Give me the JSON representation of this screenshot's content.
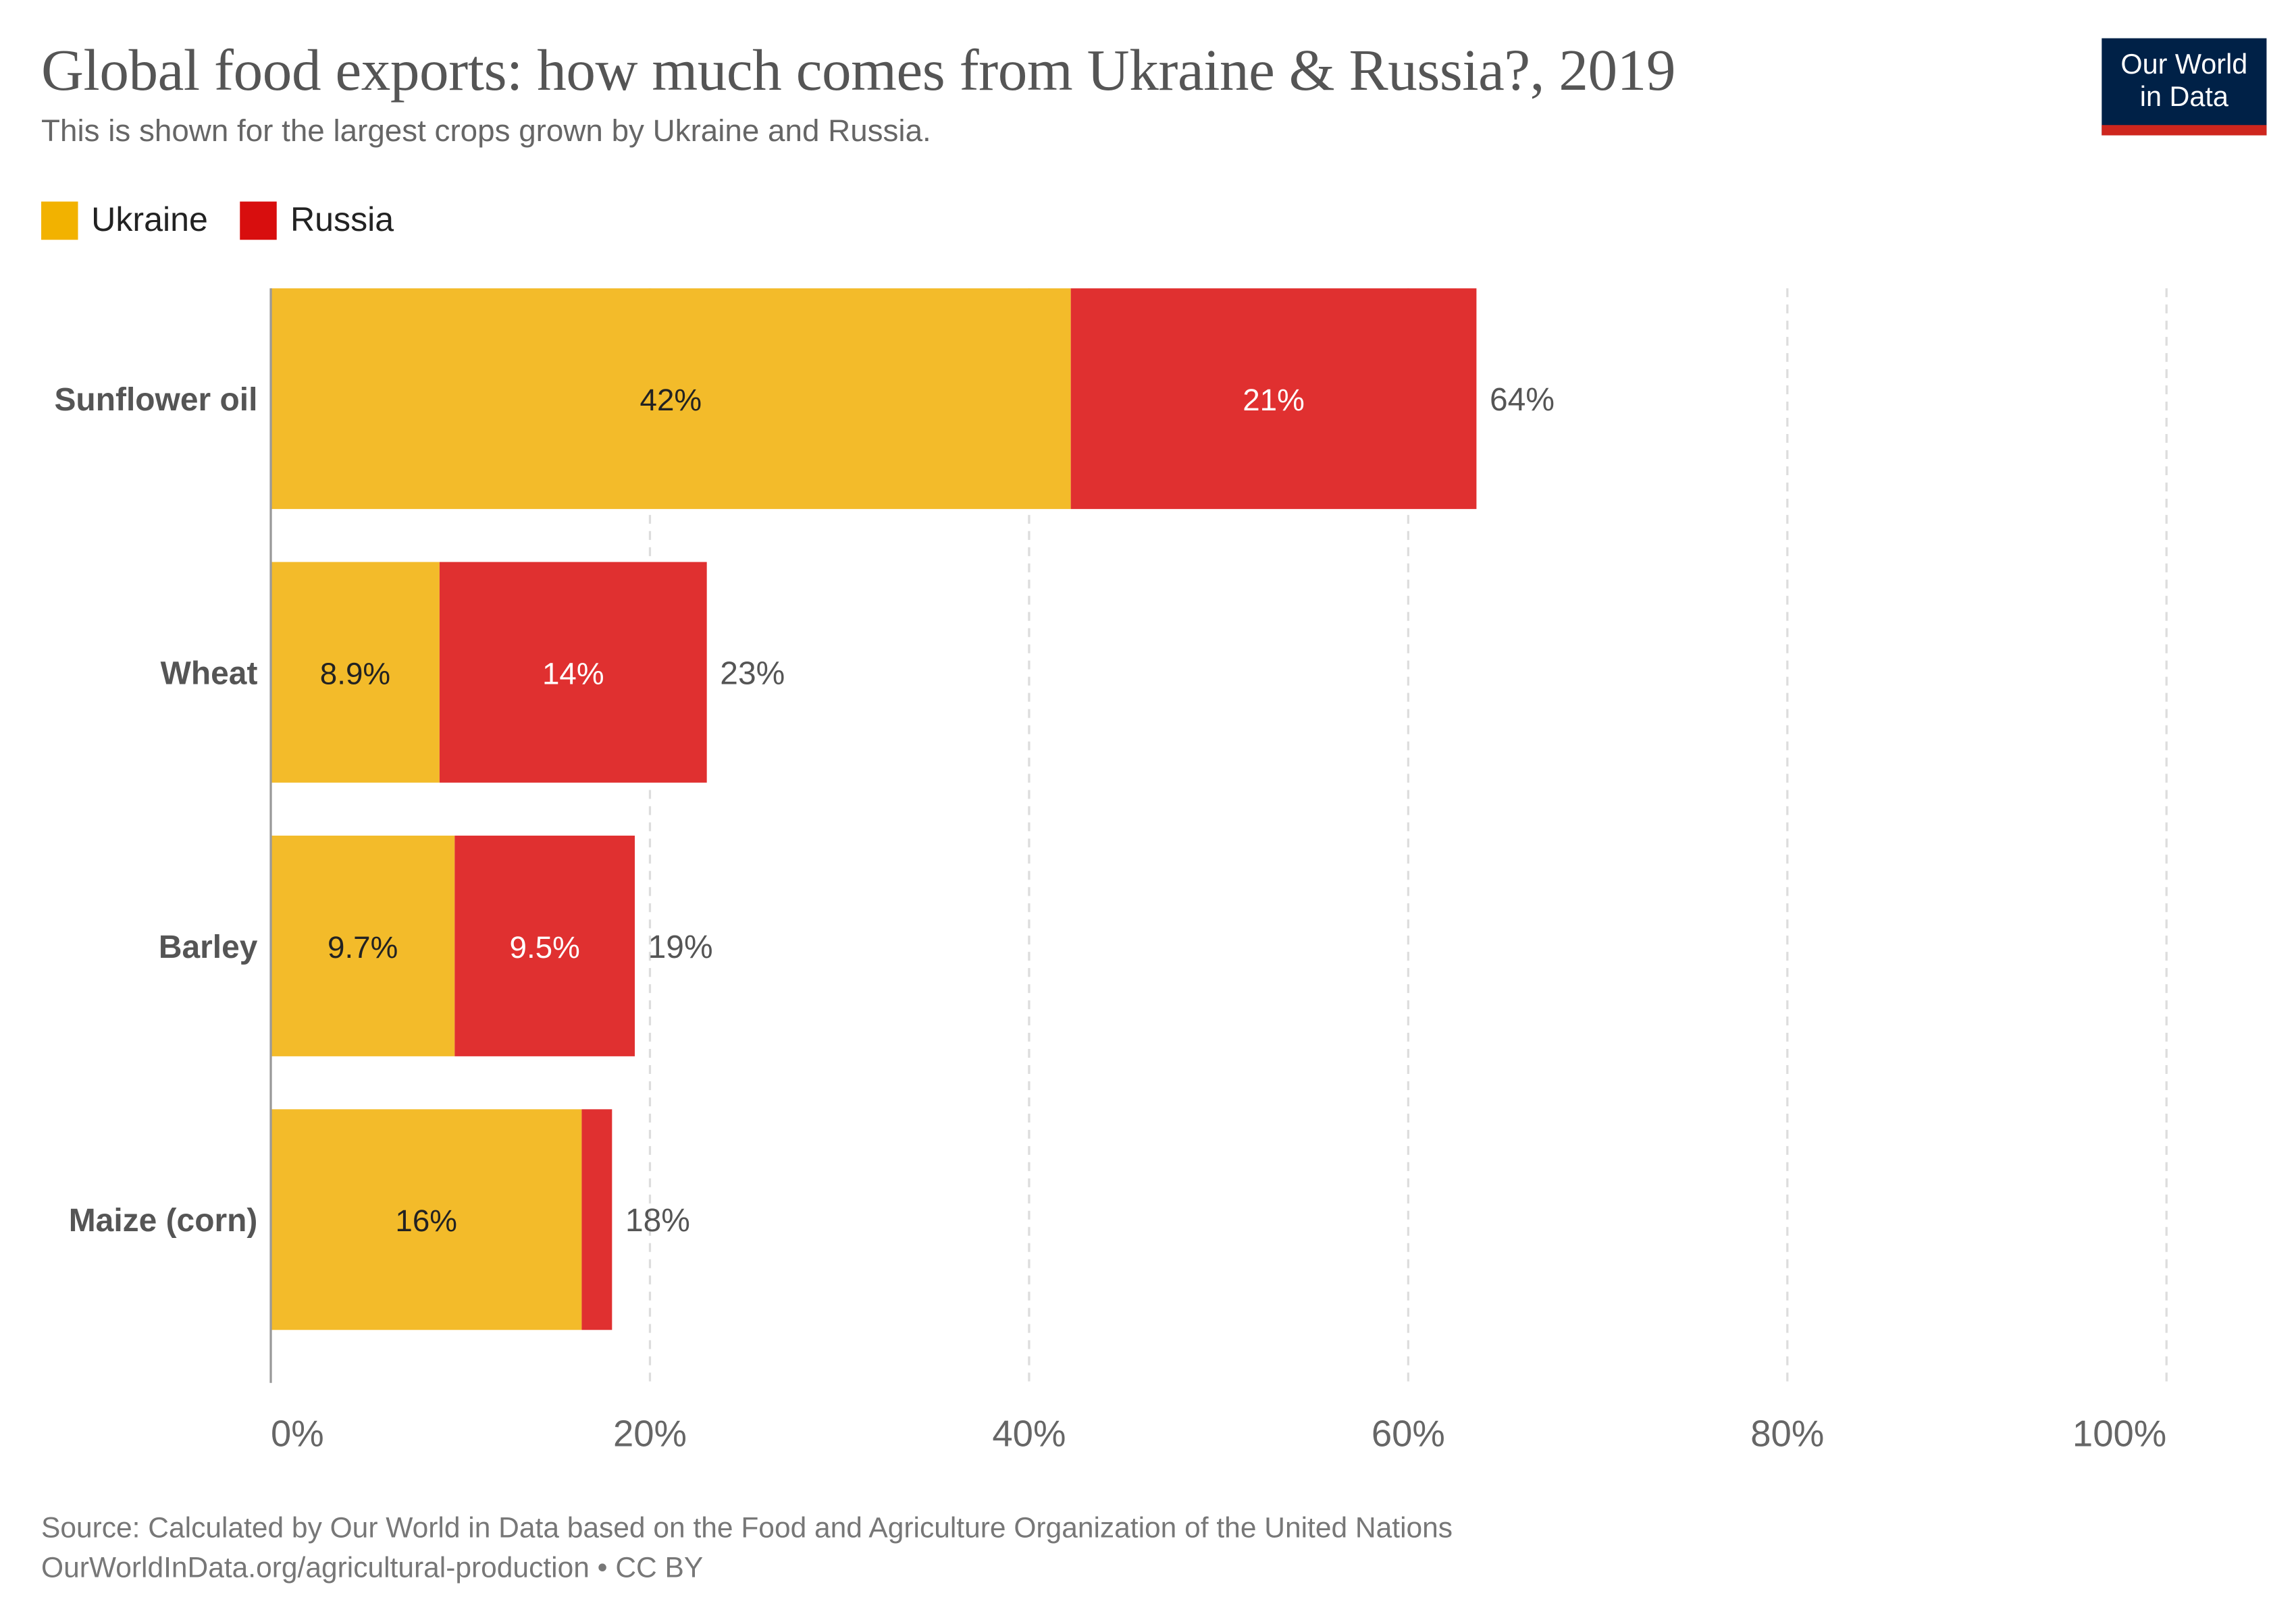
{
  "title": "Global food exports: how much comes from Ukraine & Russia?, 2019",
  "subtitle": "This is shown for the largest crops grown by Ukraine and Russia.",
  "logo": {
    "line1": "Our World",
    "line2": "in Data",
    "bg_color": "#002147",
    "accent_color": "#ce261e"
  },
  "footer": {
    "source": "Source: Calculated by Our World in Data based on the Food and Agriculture Organization of the United Nations",
    "url": "OurWorldInData.org/agricultural-production • CC BY"
  },
  "chart_data": {
    "type": "bar",
    "orientation": "horizontal",
    "stacked": true,
    "categories": [
      "Sunflower oil",
      "Wheat",
      "Barley",
      "Maize (corn)"
    ],
    "series": [
      {
        "name": "Ukraine",
        "color": "#f3bb2a",
        "legend_color": "#f2b200",
        "values": [
          42.2,
          8.9,
          9.7,
          16.4
        ],
        "labels": [
          "42%",
          "8.9%",
          "9.7%",
          "16%"
        ]
      },
      {
        "name": "Russia",
        "color": "#e03030",
        "legend_color": "#d80e0e",
        "values": [
          21.4,
          14.1,
          9.5,
          1.6
        ],
        "labels": [
          "21%",
          "14%",
          "9.5%",
          ""
        ]
      }
    ],
    "totals": [
      "64%",
      "23%",
      "19%",
      "18%"
    ],
    "xlim": [
      0,
      100
    ],
    "x_ticks": [
      "0%",
      "20%",
      "40%",
      "60%",
      "80%",
      "100%"
    ],
    "x_tick_values": [
      0,
      20,
      40,
      60,
      80,
      100
    ],
    "grid": "vertical dashed",
    "legend": "top-left"
  }
}
